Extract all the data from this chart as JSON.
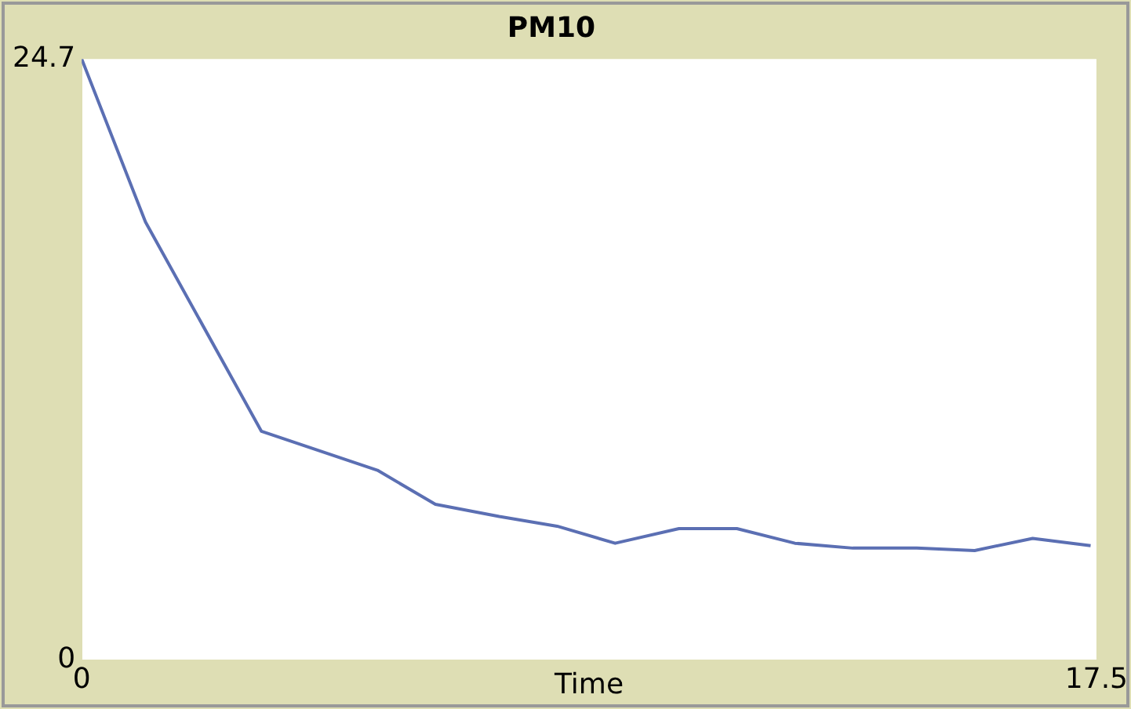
{
  "chart_data": {
    "type": "line",
    "title": "PM10",
    "xlabel": "Time",
    "x": [
      0,
      1.1,
      3.1,
      5.1,
      6.1,
      7.2,
      8.2,
      9.2,
      10.3,
      11.3,
      12.3,
      13.3,
      14.4,
      15.4,
      16.4,
      17.4
    ],
    "series": [
      {
        "color": "#5b6fb3",
        "values": [
          24.7,
          18,
          9.4,
          7.8,
          6.4,
          5.9,
          5.5,
          4.8,
          5.4,
          5.4,
          4.8,
          4.6,
          4.6,
          4.5,
          5,
          4.7
        ]
      }
    ],
    "xlim": [
      0,
      17.5
    ],
    "xticks": [
      0,
      17.5
    ],
    "ylim": [
      0,
      24.7
    ],
    "yticks": [
      0,
      24.7
    ],
    "grid": false,
    "legend": false,
    "marker": "none",
    "line_style": "solid"
  }
}
